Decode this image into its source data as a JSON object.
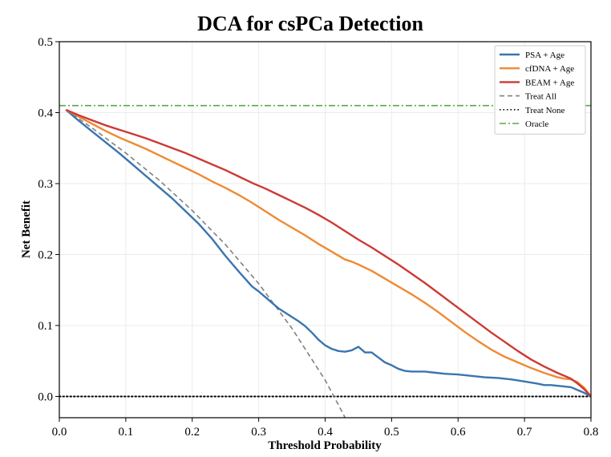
{
  "chart_data": {
    "type": "line",
    "title": "DCA for csPCa Detection",
    "xlabel": "Threshold Probability",
    "ylabel": "Net Benefit",
    "xlim": [
      0.0,
      0.8
    ],
    "ylim": [
      -0.03,
      0.5
    ],
    "xticks": [
      "0.0",
      "0.1",
      "0.2",
      "0.3",
      "0.4",
      "0.5",
      "0.6",
      "0.7",
      "0.8"
    ],
    "yticks": [
      "0.0",
      "0.1",
      "0.2",
      "0.3",
      "0.4",
      "0.5"
    ],
    "grid": true,
    "legend_position": "top-right",
    "series": [
      {
        "name": "PSA + Age",
        "color": "#3a75b0",
        "style": "solid",
        "x": [
          0.01,
          0.03,
          0.05,
          0.07,
          0.09,
          0.11,
          0.13,
          0.15,
          0.17,
          0.19,
          0.21,
          0.23,
          0.25,
          0.27,
          0.29,
          0.3,
          0.31,
          0.32,
          0.33,
          0.34,
          0.35,
          0.36,
          0.37,
          0.38,
          0.39,
          0.4,
          0.41,
          0.42,
          0.43,
          0.44,
          0.45,
          0.46,
          0.47,
          0.48,
          0.49,
          0.5,
          0.51,
          0.52,
          0.53,
          0.55,
          0.56,
          0.57,
          0.58,
          0.6,
          0.62,
          0.64,
          0.66,
          0.68,
          0.7,
          0.72,
          0.73,
          0.74,
          0.75,
          0.76,
          0.77,
          0.78,
          0.79,
          0.8
        ],
        "y": [
          0.404,
          0.388,
          0.373,
          0.358,
          0.343,
          0.327,
          0.311,
          0.295,
          0.279,
          0.261,
          0.243,
          0.222,
          0.198,
          0.176,
          0.155,
          0.148,
          0.14,
          0.132,
          0.124,
          0.118,
          0.112,
          0.106,
          0.099,
          0.09,
          0.08,
          0.072,
          0.067,
          0.064,
          0.063,
          0.065,
          0.07,
          0.062,
          0.062,
          0.055,
          0.048,
          0.044,
          0.039,
          0.036,
          0.035,
          0.035,
          0.034,
          0.033,
          0.032,
          0.031,
          0.029,
          0.027,
          0.026,
          0.024,
          0.021,
          0.018,
          0.016,
          0.016,
          0.015,
          0.014,
          0.013,
          0.009,
          0.005,
          0.0
        ]
      },
      {
        "name": "cfDNA + Age",
        "color": "#ef8a33",
        "style": "solid",
        "x": [
          0.01,
          0.03,
          0.05,
          0.07,
          0.09,
          0.11,
          0.13,
          0.15,
          0.17,
          0.19,
          0.21,
          0.23,
          0.25,
          0.27,
          0.29,
          0.31,
          0.33,
          0.35,
          0.37,
          0.39,
          0.41,
          0.43,
          0.44,
          0.45,
          0.47,
          0.49,
          0.51,
          0.53,
          0.55,
          0.57,
          0.59,
          0.61,
          0.63,
          0.65,
          0.67,
          0.69,
          0.71,
          0.73,
          0.75,
          0.76,
          0.77,
          0.78,
          0.79,
          0.8
        ],
        "y": [
          0.404,
          0.394,
          0.384,
          0.374,
          0.365,
          0.357,
          0.349,
          0.34,
          0.331,
          0.322,
          0.313,
          0.303,
          0.294,
          0.284,
          0.273,
          0.261,
          0.249,
          0.238,
          0.227,
          0.215,
          0.204,
          0.193,
          0.19,
          0.186,
          0.177,
          0.166,
          0.155,
          0.144,
          0.132,
          0.119,
          0.105,
          0.091,
          0.078,
          0.066,
          0.056,
          0.048,
          0.04,
          0.033,
          0.027,
          0.025,
          0.024,
          0.02,
          0.012,
          0.0
        ]
      },
      {
        "name": "BEAM + Age",
        "color": "#cc3a35",
        "style": "solid",
        "x": [
          0.01,
          0.03,
          0.05,
          0.07,
          0.09,
          0.11,
          0.13,
          0.15,
          0.17,
          0.19,
          0.21,
          0.23,
          0.25,
          0.27,
          0.29,
          0.31,
          0.33,
          0.35,
          0.37,
          0.39,
          0.41,
          0.43,
          0.45,
          0.47,
          0.49,
          0.51,
          0.53,
          0.55,
          0.57,
          0.59,
          0.61,
          0.63,
          0.65,
          0.67,
          0.69,
          0.71,
          0.73,
          0.75,
          0.76,
          0.77,
          0.78,
          0.79,
          0.8
        ],
        "y": [
          0.404,
          0.396,
          0.389,
          0.382,
          0.376,
          0.37,
          0.364,
          0.357,
          0.35,
          0.343,
          0.335,
          0.327,
          0.319,
          0.31,
          0.301,
          0.293,
          0.284,
          0.275,
          0.266,
          0.256,
          0.245,
          0.233,
          0.221,
          0.21,
          0.198,
          0.186,
          0.173,
          0.16,
          0.146,
          0.132,
          0.118,
          0.104,
          0.09,
          0.077,
          0.064,
          0.052,
          0.042,
          0.033,
          0.029,
          0.025,
          0.018,
          0.01,
          0.0
        ]
      },
      {
        "name": "Treat All",
        "color": "#808080",
        "style": "dashed",
        "x": [
          0.01,
          0.05,
          0.1,
          0.15,
          0.2,
          0.25,
          0.3,
          0.35,
          0.4,
          0.42,
          0.43
        ],
        "y": [
          0.404,
          0.378,
          0.343,
          0.305,
          0.262,
          0.214,
          0.159,
          0.096,
          0.023,
          -0.012,
          -0.03
        ]
      },
      {
        "name": "Treat None",
        "color": "#000000",
        "style": "dotted",
        "x": [
          0.0,
          0.8
        ],
        "y": [
          0.0,
          0.0
        ]
      },
      {
        "name": "Oracle",
        "color": "#5aa84a",
        "style": "dashdot",
        "x": [
          0.0,
          0.8
        ],
        "y": [
          0.41,
          0.41
        ]
      }
    ]
  }
}
